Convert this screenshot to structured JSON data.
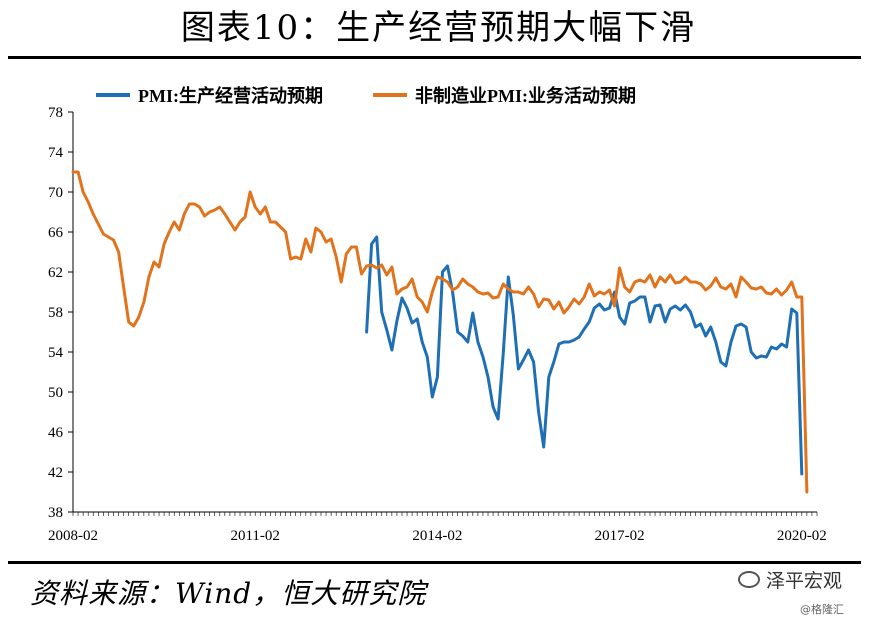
{
  "title": "图表10：生产经营预期大幅下滑",
  "source": "资料来源：Wind，恒大研究院",
  "brand": {
    "name": "泽平宏观",
    "icon": "wechat-icon"
  },
  "watermark": "@格隆汇",
  "colors": {
    "blue": "#1f6fb5",
    "orange": "#e0731c"
  },
  "chart_data": {
    "type": "line",
    "title": "图表10：生产经营预期大幅下滑",
    "xlabel": "",
    "ylabel": "",
    "ylim": [
      38,
      78
    ],
    "yticks": [
      38,
      42,
      46,
      50,
      54,
      58,
      62,
      66,
      70,
      74,
      78
    ],
    "xticks": [
      "2008-02",
      "2011-02",
      "2014-02",
      "2017-02",
      "2020-02"
    ],
    "xlim": [
      "2008-02",
      "2020-05"
    ],
    "grid": false,
    "legend": "top",
    "series": [
      {
        "name": "PMI:生产经营活动预期",
        "color": "#1f6fb5",
        "points": [
          [
            "2012-12",
            56.0
          ],
          [
            "2013-01",
            64.8
          ],
          [
            "2013-02",
            65.5
          ],
          [
            "2013-03",
            58.0
          ],
          [
            "2013-04",
            56.2
          ],
          [
            "2013-05",
            54.2
          ],
          [
            "2013-06",
            57.1
          ],
          [
            "2013-07",
            59.4
          ],
          [
            "2013-08",
            58.4
          ],
          [
            "2013-09",
            56.9
          ],
          [
            "2013-10",
            57.3
          ],
          [
            "2013-11",
            55.0
          ],
          [
            "2013-12",
            53.5
          ],
          [
            "2014-01",
            49.5
          ],
          [
            "2014-02",
            51.5
          ],
          [
            "2014-03",
            62.0
          ],
          [
            "2014-04",
            62.6
          ],
          [
            "2014-05",
            60.0
          ],
          [
            "2014-06",
            56.0
          ],
          [
            "2014-07",
            55.6
          ],
          [
            "2014-08",
            55.0
          ],
          [
            "2014-09",
            57.9
          ],
          [
            "2014-10",
            55.0
          ],
          [
            "2014-11",
            53.5
          ],
          [
            "2014-12",
            51.5
          ],
          [
            "2015-01",
            48.5
          ],
          [
            "2015-02",
            47.3
          ],
          [
            "2015-03",
            53.8
          ],
          [
            "2015-04",
            61.5
          ],
          [
            "2015-05",
            57.7
          ],
          [
            "2015-06",
            52.3
          ],
          [
            "2015-07",
            53.2
          ],
          [
            "2015-08",
            54.2
          ],
          [
            "2015-09",
            53.0
          ],
          [
            "2015-10",
            48.0
          ],
          [
            "2015-11",
            44.5
          ],
          [
            "2015-12",
            51.5
          ],
          [
            "2016-01",
            53.0
          ],
          [
            "2016-02",
            54.8
          ],
          [
            "2016-03",
            55.0
          ],
          [
            "2016-04",
            55.0
          ],
          [
            "2016-05",
            55.2
          ],
          [
            "2016-06",
            55.5
          ],
          [
            "2016-07",
            56.3
          ],
          [
            "2016-08",
            57.0
          ],
          [
            "2016-09",
            58.4
          ],
          [
            "2016-10",
            58.8
          ],
          [
            "2016-11",
            58.2
          ],
          [
            "2016-12",
            58.4
          ],
          [
            "2017-01",
            60.0
          ],
          [
            "2017-02",
            57.5
          ],
          [
            "2017-03",
            56.8
          ],
          [
            "2017-04",
            58.9
          ],
          [
            "2017-05",
            59.1
          ],
          [
            "2017-06",
            59.5
          ],
          [
            "2017-07",
            59.5
          ],
          [
            "2017-08",
            57.0
          ],
          [
            "2017-09",
            58.6
          ],
          [
            "2017-10",
            58.7
          ],
          [
            "2017-11",
            57.0
          ],
          [
            "2017-12",
            58.3
          ],
          [
            "2018-01",
            58.6
          ],
          [
            "2018-02",
            58.2
          ],
          [
            "2018-03",
            58.7
          ],
          [
            "2018-04",
            58.0
          ],
          [
            "2018-05",
            56.5
          ],
          [
            "2018-06",
            56.8
          ],
          [
            "2018-07",
            55.6
          ],
          [
            "2018-08",
            56.5
          ],
          [
            "2018-09",
            55.0
          ],
          [
            "2018-10",
            53.0
          ],
          [
            "2018-11",
            52.6
          ],
          [
            "2018-12",
            55.0
          ],
          [
            "2019-01",
            56.6
          ],
          [
            "2019-02",
            56.8
          ],
          [
            "2019-03",
            56.5
          ],
          [
            "2019-04",
            54.0
          ],
          [
            "2019-05",
            53.4
          ],
          [
            "2019-06",
            53.6
          ],
          [
            "2019-07",
            53.5
          ],
          [
            "2019-08",
            54.5
          ],
          [
            "2019-09",
            54.3
          ],
          [
            "2019-10",
            54.8
          ],
          [
            "2019-11",
            54.5
          ],
          [
            "2019-12",
            58.3
          ],
          [
            "2020-01",
            57.9
          ],
          [
            "2020-02",
            41.8
          ]
        ]
      },
      {
        "name": "非制造业PMI:业务活动预期",
        "color": "#e0731c",
        "points": [
          [
            "2008-02",
            72.0
          ],
          [
            "2008-03",
            72.0
          ],
          [
            "2008-04",
            70.0
          ],
          [
            "2008-05",
            69.0
          ],
          [
            "2008-06",
            67.8
          ],
          [
            "2008-07",
            66.8
          ],
          [
            "2008-08",
            65.8
          ],
          [
            "2008-09",
            65.5
          ],
          [
            "2008-10",
            65.2
          ],
          [
            "2008-11",
            64.0
          ],
          [
            "2008-12",
            60.5
          ],
          [
            "2009-01",
            57.0
          ],
          [
            "2009-02",
            56.6
          ],
          [
            "2009-03",
            57.5
          ],
          [
            "2009-04",
            59.0
          ],
          [
            "2009-05",
            61.5
          ],
          [
            "2009-06",
            63.0
          ],
          [
            "2009-07",
            62.5
          ],
          [
            "2009-08",
            64.8
          ],
          [
            "2009-09",
            66.0
          ],
          [
            "2009-10",
            67.0
          ],
          [
            "2009-11",
            66.2
          ],
          [
            "2009-12",
            67.8
          ],
          [
            "2010-01",
            68.8
          ],
          [
            "2010-02",
            68.8
          ],
          [
            "2010-03",
            68.5
          ],
          [
            "2010-04",
            67.6
          ],
          [
            "2010-05",
            68.0
          ],
          [
            "2010-06",
            68.2
          ],
          [
            "2010-07",
            68.5
          ],
          [
            "2010-08",
            67.8
          ],
          [
            "2010-09",
            67.0
          ],
          [
            "2010-10",
            66.2
          ],
          [
            "2010-11",
            67.0
          ],
          [
            "2010-12",
            67.5
          ],
          [
            "2011-01",
            70.0
          ],
          [
            "2011-02",
            68.5
          ],
          [
            "2011-03",
            67.8
          ],
          [
            "2011-04",
            68.5
          ],
          [
            "2011-05",
            67.0
          ],
          [
            "2011-06",
            67.0
          ],
          [
            "2011-07",
            66.5
          ],
          [
            "2011-08",
            66.0
          ],
          [
            "2011-09",
            63.3
          ],
          [
            "2011-10",
            63.5
          ],
          [
            "2011-11",
            63.3
          ],
          [
            "2011-12",
            65.3
          ],
          [
            "2012-01",
            64.0
          ],
          [
            "2012-02",
            66.4
          ],
          [
            "2012-03",
            66.0
          ],
          [
            "2012-04",
            65.0
          ],
          [
            "2012-05",
            65.3
          ],
          [
            "2012-06",
            63.5
          ],
          [
            "2012-07",
            61.0
          ],
          [
            "2012-08",
            63.8
          ],
          [
            "2012-09",
            64.5
          ],
          [
            "2012-10",
            64.5
          ],
          [
            "2012-11",
            61.8
          ],
          [
            "2012-12",
            62.6
          ],
          [
            "2013-01",
            62.7
          ],
          [
            "2013-02",
            62.4
          ],
          [
            "2013-03",
            62.7
          ],
          [
            "2013-04",
            61.7
          ],
          [
            "2013-05",
            62.5
          ],
          [
            "2013-06",
            59.8
          ],
          [
            "2013-07",
            60.3
          ],
          [
            "2013-08",
            60.5
          ],
          [
            "2013-09",
            61.3
          ],
          [
            "2013-10",
            59.5
          ],
          [
            "2013-11",
            59.0
          ],
          [
            "2013-12",
            58.0
          ],
          [
            "2014-01",
            60.0
          ],
          [
            "2014-02",
            61.5
          ],
          [
            "2014-03",
            61.3
          ],
          [
            "2014-04",
            61.0
          ],
          [
            "2014-05",
            60.2
          ],
          [
            "2014-06",
            60.5
          ],
          [
            "2014-07",
            61.3
          ],
          [
            "2014-08",
            60.8
          ],
          [
            "2014-09",
            60.5
          ],
          [
            "2014-10",
            60.0
          ],
          [
            "2014-11",
            59.8
          ],
          [
            "2014-12",
            59.9
          ],
          [
            "2015-01",
            59.4
          ],
          [
            "2015-02",
            59.5
          ],
          [
            "2015-03",
            60.8
          ],
          [
            "2015-04",
            60.3
          ],
          [
            "2015-05",
            60.0
          ],
          [
            "2015-06",
            60.0
          ],
          [
            "2015-07",
            59.8
          ],
          [
            "2015-08",
            60.5
          ],
          [
            "2015-09",
            59.8
          ],
          [
            "2015-10",
            58.5
          ],
          [
            "2015-11",
            59.3
          ],
          [
            "2015-12",
            59.2
          ],
          [
            "2016-01",
            58.3
          ],
          [
            "2016-02",
            59.0
          ],
          [
            "2016-03",
            57.9
          ],
          [
            "2016-04",
            58.5
          ],
          [
            "2016-05",
            59.3
          ],
          [
            "2016-06",
            58.8
          ],
          [
            "2016-07",
            59.5
          ],
          [
            "2016-08",
            60.8
          ],
          [
            "2016-09",
            59.6
          ],
          [
            "2016-10",
            60.0
          ],
          [
            "2016-11",
            59.8
          ],
          [
            "2016-12",
            60.2
          ],
          [
            "2017-01",
            58.6
          ],
          [
            "2017-02",
            62.4
          ],
          [
            "2017-03",
            60.5
          ],
          [
            "2017-04",
            60.0
          ],
          [
            "2017-05",
            61.0
          ],
          [
            "2017-06",
            61.2
          ],
          [
            "2017-07",
            61.0
          ],
          [
            "2017-08",
            61.7
          ],
          [
            "2017-09",
            60.5
          ],
          [
            "2017-10",
            61.5
          ],
          [
            "2017-11",
            61.0
          ],
          [
            "2017-12",
            61.7
          ],
          [
            "2018-01",
            60.9
          ],
          [
            "2018-02",
            61.0
          ],
          [
            "2018-03",
            61.5
          ],
          [
            "2018-04",
            61.0
          ],
          [
            "2018-05",
            61.0
          ],
          [
            "2018-06",
            60.8
          ],
          [
            "2018-07",
            60.2
          ],
          [
            "2018-08",
            60.6
          ],
          [
            "2018-09",
            61.4
          ],
          [
            "2018-10",
            60.5
          ],
          [
            "2018-11",
            60.3
          ],
          [
            "2018-12",
            60.8
          ],
          [
            "2019-01",
            59.5
          ],
          [
            "2019-02",
            61.5
          ],
          [
            "2019-03",
            61.0
          ],
          [
            "2019-04",
            60.4
          ],
          [
            "2019-05",
            60.3
          ],
          [
            "2019-06",
            60.5
          ],
          [
            "2019-07",
            59.9
          ],
          [
            "2019-08",
            59.8
          ],
          [
            "2019-09",
            60.3
          ],
          [
            "2019-10",
            59.7
          ],
          [
            "2019-11",
            60.2
          ],
          [
            "2019-12",
            61.0
          ],
          [
            "2020-01",
            59.5
          ],
          [
            "2020-02",
            59.5
          ],
          [
            "2020-03",
            40.0
          ]
        ]
      }
    ]
  }
}
